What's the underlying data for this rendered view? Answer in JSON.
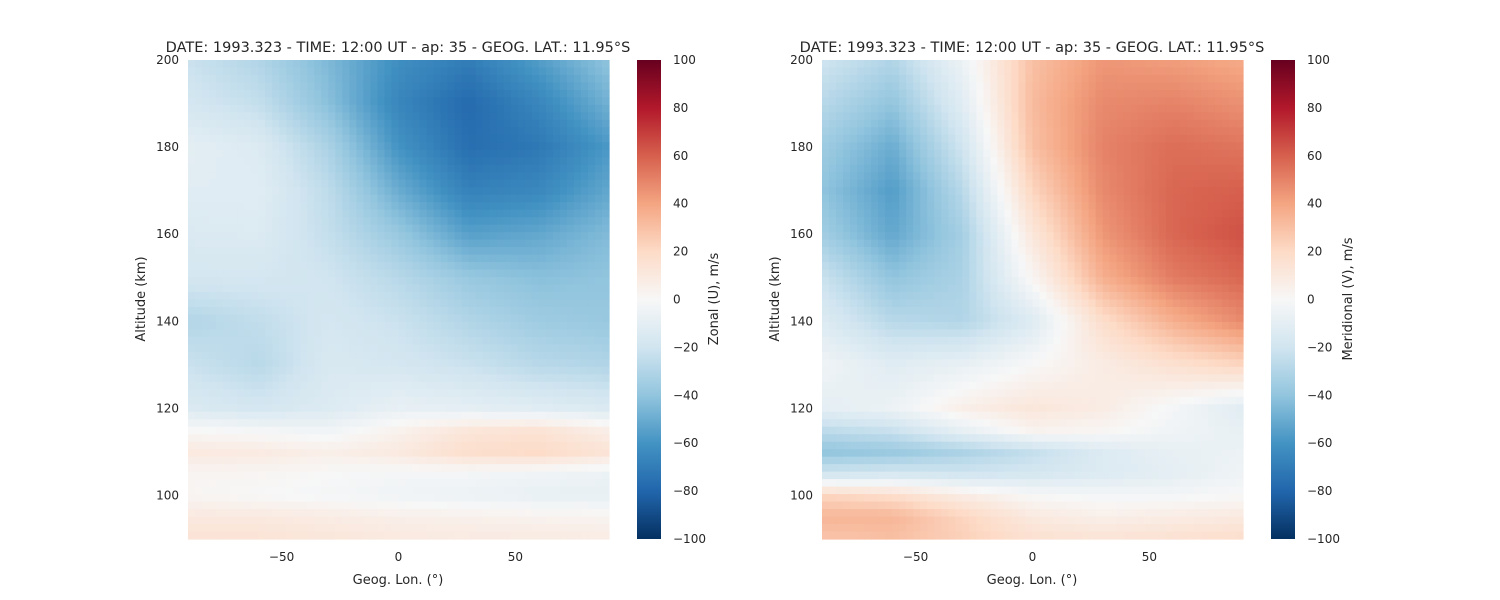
{
  "chart_data": [
    {
      "type": "heatmap",
      "title": "DATE: 1993.323 - TIME: 12:00 UT - ap:  35 - GEOG. LAT.:  11.95$^\\circ$S",
      "title_display": "DATE: 1993.323 - TIME: 12:00 UT - ap:  35 - GEOG. LAT.:  11.95°S",
      "xlabel": "Geog. Lon. (°)",
      "ylabel": "Altitude (km)",
      "colorbar_label": "Zonal (U), m/s",
      "xlim": [
        -90,
        90
      ],
      "ylim": [
        90,
        200
      ],
      "clim": [
        -100,
        100
      ],
      "colormap": "RdBu_r",
      "x_ticks": [
        -50,
        0,
        50
      ],
      "x_tick_labels": [
        "−50",
        "0",
        "50"
      ],
      "y_ticks": [
        100,
        120,
        140,
        160,
        180,
        200
      ],
      "y_tick_labels": [
        "100",
        "120",
        "140",
        "160",
        "180",
        "200"
      ],
      "colorbar_ticks": [
        -100,
        -80,
        -60,
        -40,
        -20,
        0,
        20,
        40,
        60,
        80,
        100
      ],
      "colorbar_tick_labels": [
        "−100",
        "−80",
        "−60",
        "−40",
        "−20",
        "0",
        "20",
        "40",
        "60",
        "80",
        "100"
      ],
      "x": [
        -90,
        -60,
        -30,
        0,
        30,
        60,
        90
      ],
      "y": [
        90,
        95,
        100,
        105,
        110,
        115,
        120,
        130,
        140,
        150,
        160,
        170,
        180,
        190,
        200
      ],
      "z": [
        [
          14,
          14,
          12,
          10,
          9,
          9,
          8
        ],
        [
          10,
          10,
          8,
          6,
          5,
          4,
          3
        ],
        [
          2,
          0,
          -2,
          -4,
          -6,
          -8,
          -8
        ],
        [
          2,
          2,
          0,
          -2,
          -2,
          -4,
          -6
        ],
        [
          10,
          9,
          6,
          10,
          18,
          20,
          14
        ],
        [
          0,
          -2,
          -4,
          4,
          12,
          14,
          6
        ],
        [
          -15,
          -18,
          -14,
          -8,
          -10,
          -12,
          -15
        ],
        [
          -22,
          -28,
          -16,
          -18,
          -22,
          -28,
          -30
        ],
        [
          -30,
          -25,
          -18,
          -22,
          -30,
          -36,
          -38
        ],
        [
          -18,
          -18,
          -20,
          -28,
          -38,
          -42,
          -40
        ],
        [
          -15,
          -14,
          -24,
          -38,
          -55,
          -52,
          -44
        ],
        [
          -12,
          -12,
          -26,
          -50,
          -68,
          -65,
          -52
        ],
        [
          -10,
          -14,
          -32,
          -60,
          -76,
          -72,
          -58
        ],
        [
          -18,
          -24,
          -42,
          -66,
          -78,
          -66,
          -48
        ],
        [
          -22,
          -30,
          -45,
          -62,
          -70,
          -56,
          -40
        ]
      ]
    },
    {
      "type": "heatmap",
      "title": "DATE: 1993.323 - TIME: 12:00 UT - ap:  35 - GEOG. LAT.:  11.95$^\\circ$S",
      "title_display": "DATE: 1993.323 - TIME: 12:00 UT - ap:  35 - GEOG. LAT.:  11.95°S",
      "xlabel": "Geog. Lon. (°)",
      "ylabel": "Altitude (km)",
      "colorbar_label": "Meridional (V), m/s",
      "xlim": [
        -90,
        90
      ],
      "ylim": [
        90,
        200
      ],
      "clim": [
        -100,
        100
      ],
      "colormap": "RdBu_r",
      "x_ticks": [
        -50,
        0,
        50
      ],
      "x_tick_labels": [
        "−50",
        "0",
        "50"
      ],
      "y_ticks": [
        100,
        120,
        140,
        160,
        180,
        200
      ],
      "y_tick_labels": [
        "100",
        "120",
        "140",
        "160",
        "180",
        "200"
      ],
      "colorbar_ticks": [
        -100,
        -80,
        -60,
        -40,
        -20,
        0,
        20,
        40,
        60,
        80,
        100
      ],
      "colorbar_tick_labels": [
        "−100",
        "−80",
        "−60",
        "−40",
        "−20",
        "0",
        "20",
        "40",
        "60",
        "80",
        "100"
      ],
      "x": [
        -90,
        -60,
        -30,
        0,
        30,
        60,
        90
      ],
      "y": [
        90,
        95,
        100,
        105,
        110,
        115,
        120,
        130,
        140,
        150,
        160,
        170,
        180,
        190,
        200
      ],
      "z": [
        [
          28,
          30,
          24,
          16,
          14,
          16,
          18
        ],
        [
          34,
          34,
          22,
          10,
          6,
          8,
          10
        ],
        [
          22,
          18,
          8,
          0,
          -2,
          -2,
          0
        ],
        [
          -20,
          -18,
          -20,
          -18,
          -14,
          -10,
          -4
        ],
        [
          -40,
          -38,
          -32,
          -24,
          -14,
          -8,
          -6
        ],
        [
          -26,
          -22,
          -8,
          4,
          2,
          -4,
          -8
        ],
        [
          -10,
          -6,
          6,
          12,
          8,
          -2,
          -12
        ],
        [
          -4,
          -12,
          -8,
          0,
          8,
          16,
          22
        ],
        [
          -14,
          -28,
          -30,
          -14,
          18,
          36,
          48
        ],
        [
          -22,
          -40,
          -32,
          2,
          36,
          52,
          58
        ],
        [
          -35,
          -52,
          -34,
          12,
          44,
          58,
          64
        ],
        [
          -40,
          -56,
          -28,
          22,
          48,
          58,
          60
        ],
        [
          -36,
          -50,
          -20,
          30,
          50,
          56,
          54
        ],
        [
          -28,
          -40,
          -12,
          32,
          48,
          50,
          46
        ],
        [
          -20,
          -30,
          -6,
          30,
          44,
          42,
          38
        ]
      ]
    }
  ]
}
